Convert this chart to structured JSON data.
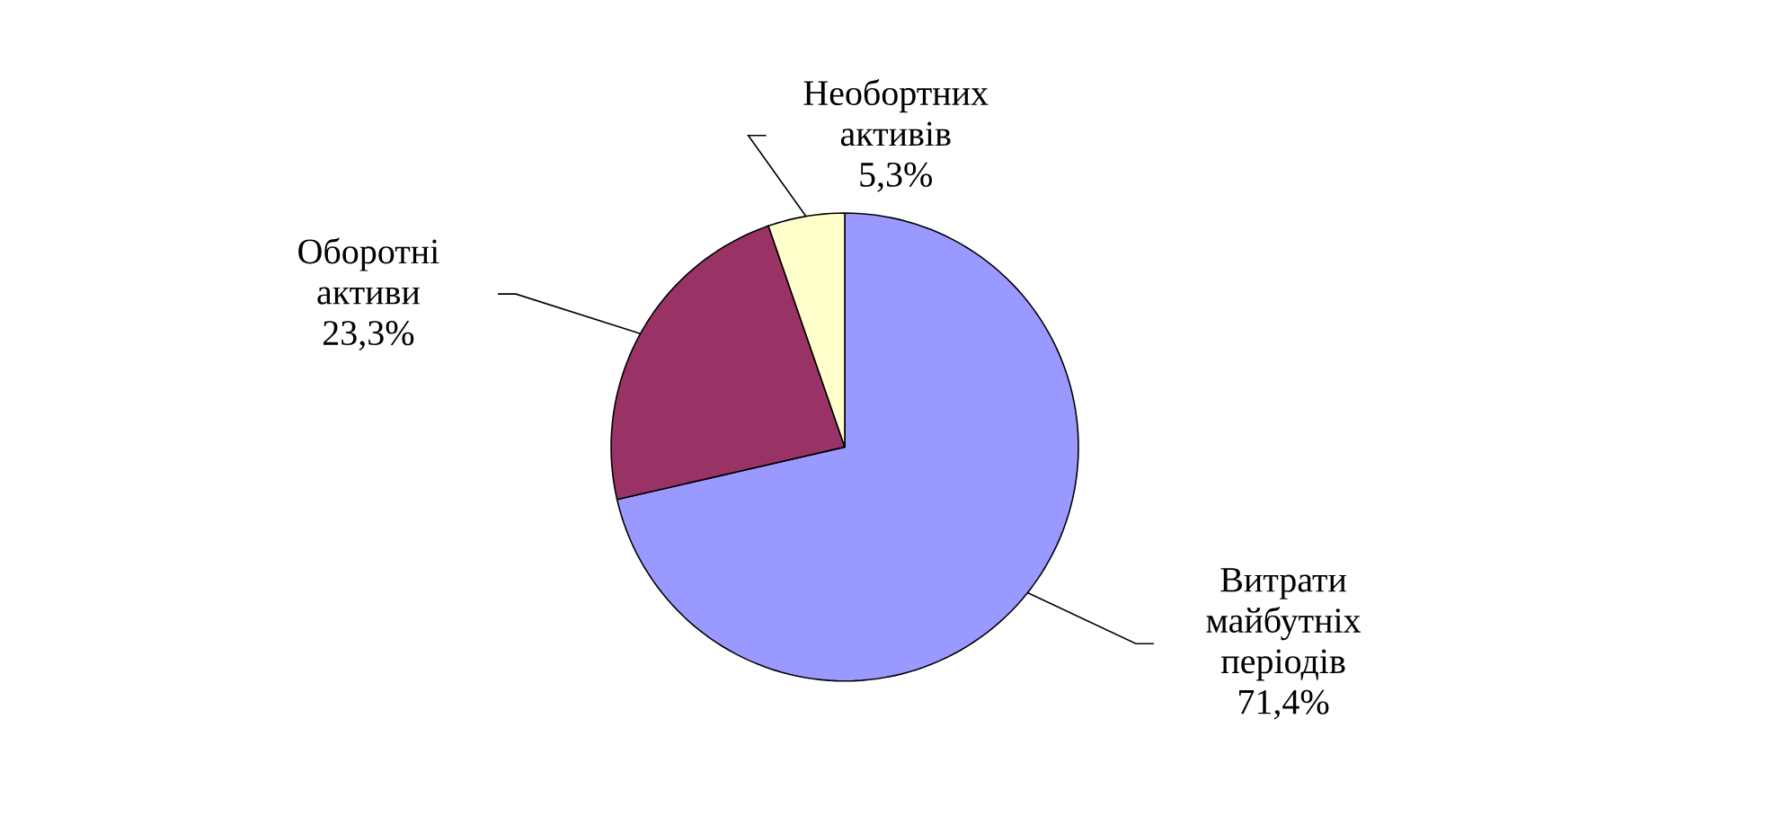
{
  "chart_data": {
    "type": "pie",
    "categories": [
      "Витрати майбутніх періодів",
      "Оборотні активи",
      "Необортних активів"
    ],
    "values": [
      71.4,
      23.3,
      5.3
    ],
    "value_labels": [
      "71,4%",
      "23,3%",
      "5,3%"
    ],
    "colors": [
      "#9999ff",
      "#993366",
      "#ffffcc"
    ]
  }
}
